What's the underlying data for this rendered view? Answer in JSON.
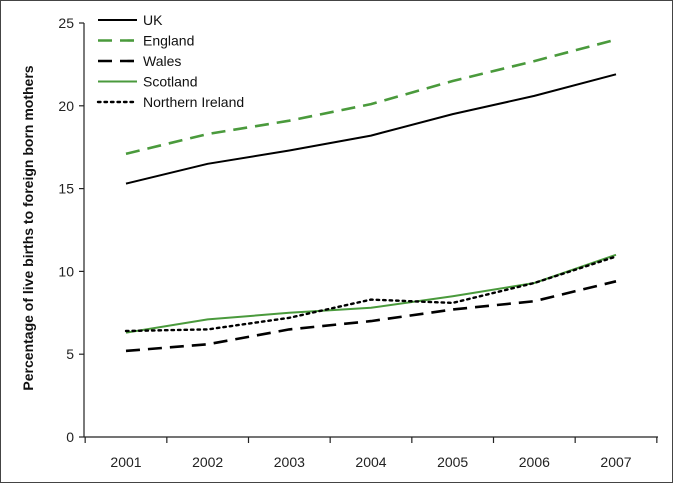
{
  "chart_data": {
    "type": "line",
    "title": "",
    "xlabel": "",
    "ylabel": "Percentage of live births to foreign born mothers",
    "x": [
      "2001",
      "2002",
      "2003",
      "2004",
      "2005",
      "2006",
      "2007"
    ],
    "ylim": [
      0,
      25
    ],
    "yticks": [
      0,
      5,
      10,
      15,
      20,
      25
    ],
    "grid": false,
    "legend_position": "top-left",
    "series": [
      {
        "name": "UK",
        "values": [
          15.3,
          16.5,
          17.3,
          18.2,
          19.5,
          20.6,
          21.9
        ],
        "color": "#000000",
        "style": "solid"
      },
      {
        "name": "England",
        "values": [
          17.1,
          18.3,
          19.1,
          20.1,
          21.5,
          22.7,
          24.0
        ],
        "color": "#4a9a3c",
        "style": "dashed"
      },
      {
        "name": "Wales",
        "values": [
          5.2,
          5.6,
          6.5,
          7.0,
          7.7,
          8.2,
          9.4
        ],
        "color": "#000000",
        "style": "dashed"
      },
      {
        "name": "Scotland",
        "values": [
          6.3,
          7.1,
          7.5,
          7.8,
          8.5,
          9.3,
          11.0
        ],
        "color": "#4a9a3c",
        "style": "solid"
      },
      {
        "name": "Northern Ireland",
        "values": [
          6.4,
          6.5,
          7.2,
          8.3,
          8.1,
          9.3,
          10.9
        ],
        "color": "#000000",
        "style": "dotted"
      }
    ]
  }
}
